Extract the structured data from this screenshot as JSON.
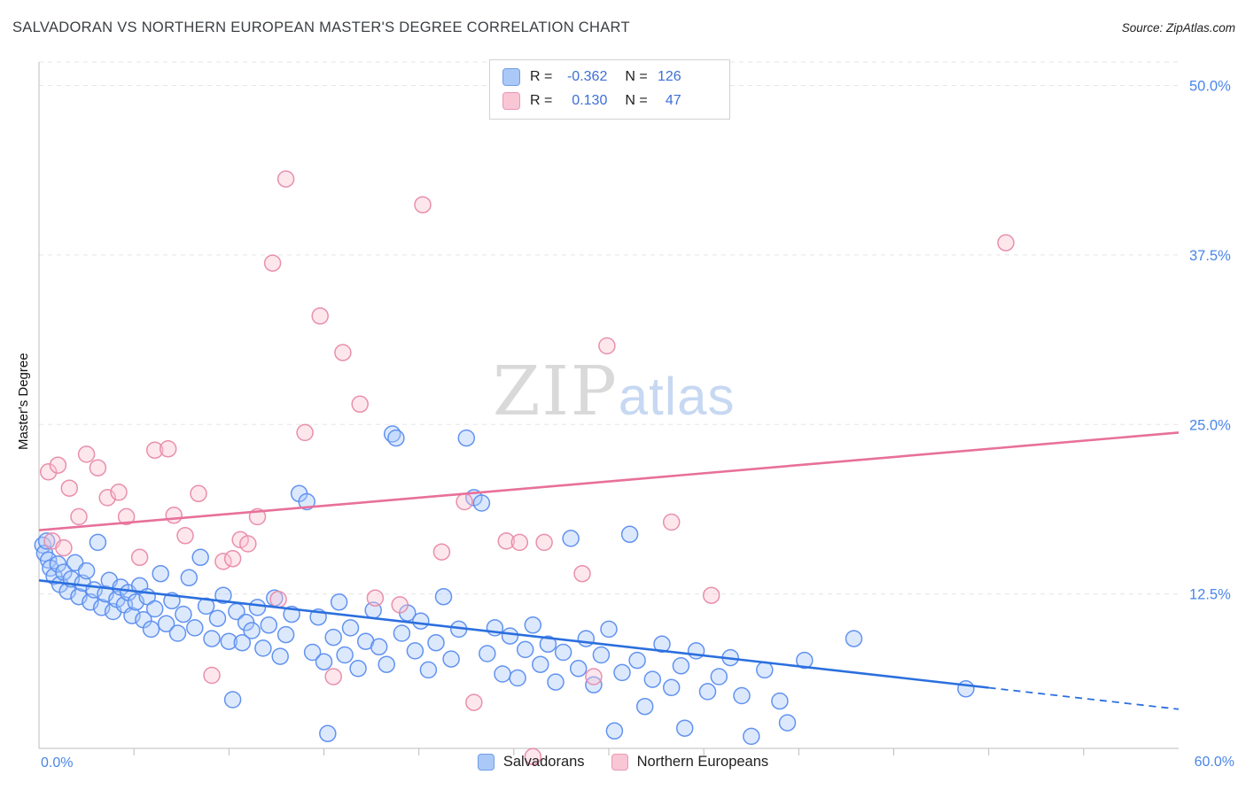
{
  "header": {
    "title": "SALVADORAN VS NORTHERN EUROPEAN MASTER'S DEGREE CORRELATION CHART",
    "source": "Source: ZipAtlas.com"
  },
  "watermark": {
    "part1": "ZIP",
    "part2": "atlas"
  },
  "legend_box": {
    "rows": [
      {
        "series": "Salvadorans",
        "r_label": "R =",
        "r_value": "-0.362",
        "n_label": "N =",
        "n_value": "126"
      },
      {
        "series": "Northern Europeans",
        "r_label": "R =",
        "r_value": "0.130",
        "n_label": "N =",
        "n_value": "47"
      }
    ]
  },
  "bottom_legend": {
    "items": [
      {
        "label": "Salvadorans"
      },
      {
        "label": "Northern Europeans"
      }
    ]
  },
  "chart_data": {
    "type": "scatter",
    "title": "SALVADORAN VS NORTHERN EUROPEAN MASTER'S DEGREE CORRELATION CHART",
    "ylabel": "Master's Degree",
    "xlim": [
      0,
      60
    ],
    "ylim": [
      0,
      51.8
    ],
    "x_min_label": "0.0%",
    "x_max_label": "60.0%",
    "x_tick_step": 5,
    "grid": "dashed-horizontal",
    "legend_position": "bottom-center",
    "tick_label_color": "#4a86e8",
    "grid_color": "#e5e5e5",
    "axis_color": "#bcbcbc",
    "y_ticks": [
      {
        "v": 50,
        "label": "50.0%"
      },
      {
        "v": 37.5,
        "label": "37.5%"
      },
      {
        "v": 25,
        "label": "25.0%"
      },
      {
        "v": 12.5,
        "label": "12.5%"
      }
    ],
    "series": [
      {
        "name": "Salvadorans",
        "R": -0.362,
        "N": 126,
        "fill": "#A8C7FA",
        "stroke": "#5B8DEF",
        "points": [
          [
            0.2,
            16.1
          ],
          [
            0.3,
            15.5
          ],
          [
            0.4,
            16.4
          ],
          [
            0.5,
            15.0
          ],
          [
            0.6,
            14.4
          ],
          [
            0.8,
            13.8
          ],
          [
            1.0,
            14.7
          ],
          [
            1.1,
            13.2
          ],
          [
            1.3,
            14.1
          ],
          [
            1.5,
            12.7
          ],
          [
            1.7,
            13.6
          ],
          [
            1.9,
            14.8
          ],
          [
            2.1,
            12.3
          ],
          [
            2.3,
            13.3
          ],
          [
            2.5,
            14.2
          ],
          [
            2.7,
            11.9
          ],
          [
            2.9,
            12.8
          ],
          [
            3.1,
            16.3
          ],
          [
            3.3,
            11.5
          ],
          [
            3.5,
            12.5
          ],
          [
            3.7,
            13.5
          ],
          [
            3.9,
            11.2
          ],
          [
            4.1,
            12.1
          ],
          [
            4.3,
            13.0
          ],
          [
            4.5,
            11.7
          ],
          [
            4.7,
            12.6
          ],
          [
            4.9,
            10.9
          ],
          [
            5.1,
            11.9
          ],
          [
            5.3,
            13.1
          ],
          [
            5.5,
            10.6
          ],
          [
            5.7,
            12.3
          ],
          [
            5.9,
            9.9
          ],
          [
            6.1,
            11.4
          ],
          [
            6.4,
            14.0
          ],
          [
            6.7,
            10.3
          ],
          [
            7.0,
            12.0
          ],
          [
            7.3,
            9.6
          ],
          [
            7.6,
            11.0
          ],
          [
            7.9,
            13.7
          ],
          [
            8.2,
            10.0
          ],
          [
            8.5,
            15.2
          ],
          [
            8.8,
            11.6
          ],
          [
            9.1,
            9.2
          ],
          [
            9.4,
            10.7
          ],
          [
            9.7,
            12.4
          ],
          [
            10.0,
            9.0
          ],
          [
            10.2,
            4.7
          ],
          [
            10.4,
            11.2
          ],
          [
            10.7,
            8.9
          ],
          [
            10.9,
            10.4
          ],
          [
            11.2,
            9.8
          ],
          [
            11.5,
            11.5
          ],
          [
            11.8,
            8.5
          ],
          [
            12.1,
            10.2
          ],
          [
            12.4,
            12.2
          ],
          [
            12.7,
            7.9
          ],
          [
            13.0,
            9.5
          ],
          [
            13.3,
            11.0
          ],
          [
            13.7,
            19.9
          ],
          [
            14.1,
            19.3
          ],
          [
            14.4,
            8.2
          ],
          [
            14.7,
            10.8
          ],
          [
            15.0,
            7.5
          ],
          [
            15.2,
            2.2
          ],
          [
            15.5,
            9.3
          ],
          [
            15.8,
            11.9
          ],
          [
            16.1,
            8.0
          ],
          [
            16.4,
            10.0
          ],
          [
            16.8,
            7.0
          ],
          [
            17.2,
            9.0
          ],
          [
            17.6,
            11.3
          ],
          [
            17.9,
            8.6
          ],
          [
            18.3,
            7.3
          ],
          [
            18.6,
            24.3
          ],
          [
            18.8,
            24.0
          ],
          [
            19.1,
            9.6
          ],
          [
            19.4,
            11.1
          ],
          [
            19.8,
            8.3
          ],
          [
            20.1,
            10.5
          ],
          [
            20.5,
            6.9
          ],
          [
            20.9,
            8.9
          ],
          [
            21.3,
            12.3
          ],
          [
            21.7,
            7.7
          ],
          [
            22.1,
            9.9
          ],
          [
            22.5,
            24.0
          ],
          [
            22.9,
            19.6
          ],
          [
            23.3,
            19.2
          ],
          [
            23.6,
            8.1
          ],
          [
            24.0,
            10.0
          ],
          [
            24.4,
            6.6
          ],
          [
            24.8,
            9.4
          ],
          [
            25.2,
            6.3
          ],
          [
            25.6,
            8.4
          ],
          [
            26.0,
            10.2
          ],
          [
            26.4,
            7.3
          ],
          [
            26.8,
            8.8
          ],
          [
            27.2,
            6.0
          ],
          [
            27.6,
            8.2
          ],
          [
            28.0,
            16.6
          ],
          [
            28.4,
            7.0
          ],
          [
            28.8,
            9.2
          ],
          [
            29.2,
            5.8
          ],
          [
            29.6,
            8.0
          ],
          [
            30.0,
            9.9
          ],
          [
            30.3,
            2.4
          ],
          [
            30.7,
            6.7
          ],
          [
            31.1,
            16.9
          ],
          [
            31.5,
            7.6
          ],
          [
            31.9,
            4.2
          ],
          [
            32.3,
            6.2
          ],
          [
            32.8,
            8.8
          ],
          [
            33.3,
            5.6
          ],
          [
            33.8,
            7.2
          ],
          [
            34.0,
            2.6
          ],
          [
            34.6,
            8.3
          ],
          [
            35.2,
            5.3
          ],
          [
            35.8,
            6.4
          ],
          [
            36.4,
            7.8
          ],
          [
            37.0,
            5.0
          ],
          [
            37.5,
            2.0
          ],
          [
            38.2,
            6.9
          ],
          [
            39.0,
            4.6
          ],
          [
            39.4,
            3.0
          ],
          [
            40.3,
            7.6
          ],
          [
            42.9,
            9.2
          ],
          [
            48.8,
            5.5
          ]
        ]
      },
      {
        "name": "Northern Europeans",
        "R": 0.13,
        "N": 47,
        "fill": "#F9C4D2",
        "stroke": "#E88AA8",
        "points": [
          [
            0.5,
            21.5
          ],
          [
            0.7,
            16.4
          ],
          [
            1.0,
            22.0
          ],
          [
            1.3,
            15.9
          ],
          [
            1.6,
            20.3
          ],
          [
            2.1,
            18.2
          ],
          [
            2.5,
            22.8
          ],
          [
            3.1,
            21.8
          ],
          [
            3.6,
            19.6
          ],
          [
            4.2,
            20.0
          ],
          [
            4.6,
            18.2
          ],
          [
            5.3,
            15.2
          ],
          [
            6.1,
            23.1
          ],
          [
            6.8,
            23.2
          ],
          [
            7.1,
            18.3
          ],
          [
            7.7,
            16.8
          ],
          [
            8.4,
            19.9
          ],
          [
            9.1,
            6.5
          ],
          [
            9.7,
            14.9
          ],
          [
            10.2,
            15.1
          ],
          [
            10.6,
            16.5
          ],
          [
            11.0,
            16.2
          ],
          [
            11.5,
            18.2
          ],
          [
            12.3,
            36.9
          ],
          [
            12.6,
            12.1
          ],
          [
            13.0,
            43.1
          ],
          [
            14.0,
            24.4
          ],
          [
            14.8,
            33.0
          ],
          [
            15.5,
            6.4
          ],
          [
            16.0,
            30.3
          ],
          [
            16.9,
            26.5
          ],
          [
            17.7,
            12.2
          ],
          [
            19.0,
            11.7
          ],
          [
            20.2,
            41.2
          ],
          [
            21.2,
            15.6
          ],
          [
            22.4,
            19.3
          ],
          [
            22.9,
            4.5
          ],
          [
            24.6,
            16.4
          ],
          [
            25.3,
            16.3
          ],
          [
            26.0,
            0.5
          ],
          [
            26.6,
            16.3
          ],
          [
            28.6,
            14.0
          ],
          [
            29.2,
            6.4
          ],
          [
            29.9,
            30.8
          ],
          [
            33.3,
            17.8
          ],
          [
            35.4,
            12.4
          ],
          [
            50.9,
            38.4
          ]
        ]
      }
    ],
    "trend_lines": [
      {
        "series": "Salvadorans",
        "color": "#2B6FDE",
        "x1": 0,
        "y1": 13.5,
        "x2": 60,
        "y2": 4.0,
        "solid_until_x": 50
      },
      {
        "series": "Northern Europeans",
        "color": "#E8709A",
        "x1": 0,
        "y1": 17.2,
        "x2": 60,
        "y2": 24.4
      }
    ]
  }
}
